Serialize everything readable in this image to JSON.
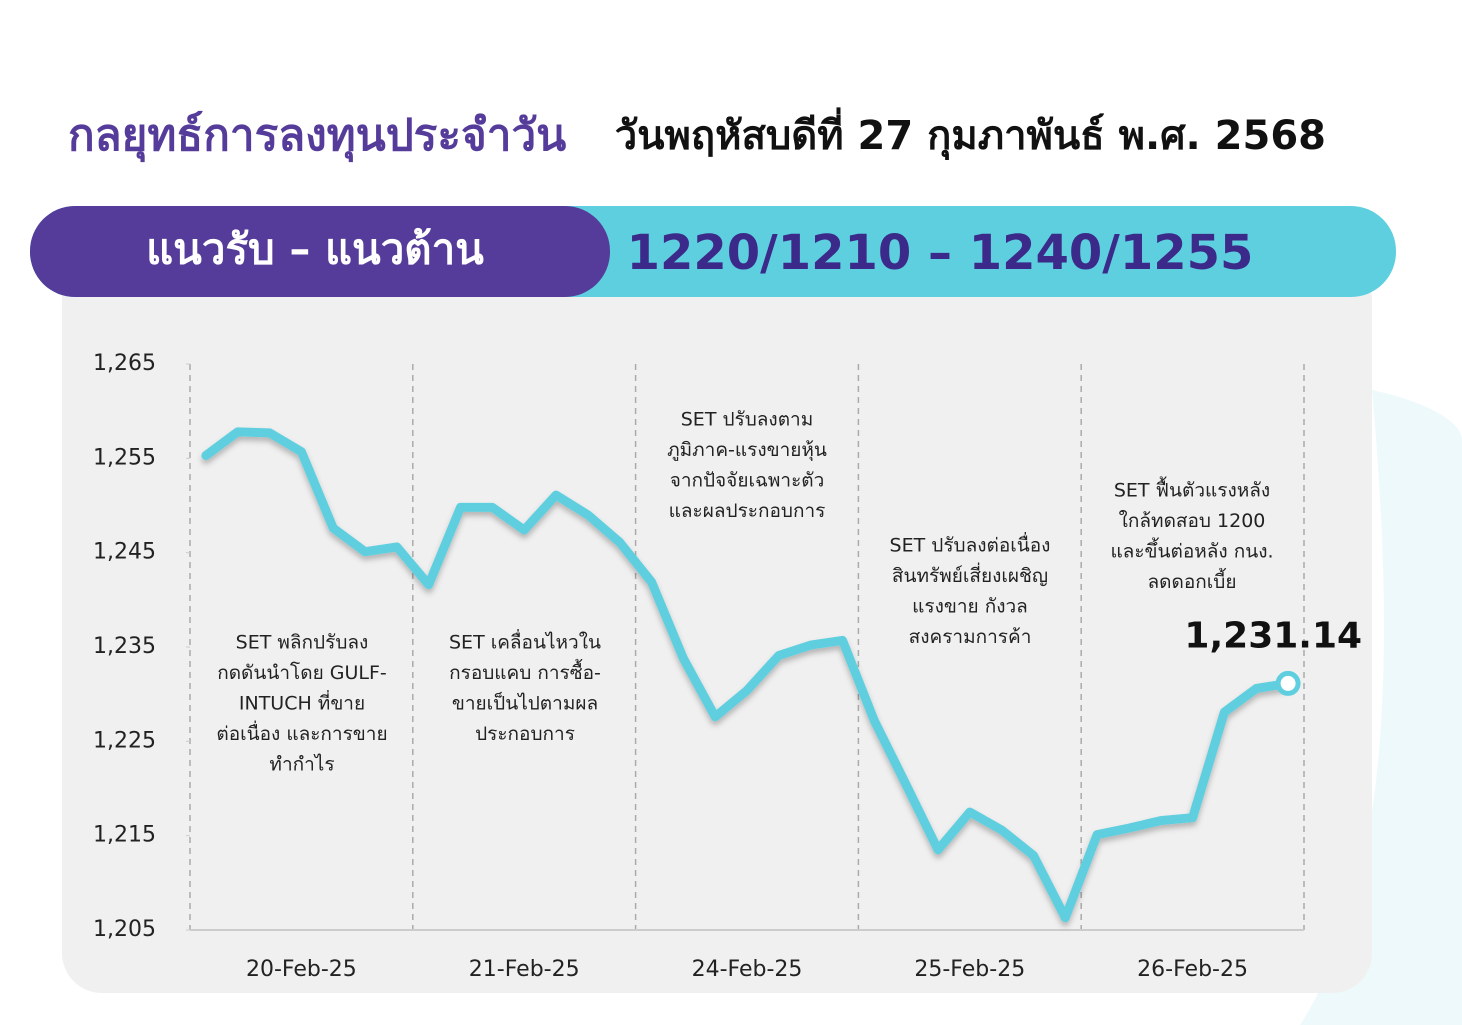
{
  "header": {
    "title": "กลยุทธ์การลงทุนประจำวัน",
    "date": "วันพฤหัสบดีที่ 27 กุมภาพันธ์ พ.ศ. 2568",
    "band_label": "แนวรับ – แนวต้าน",
    "band_value": "1220/1210 – 1240/1255"
  },
  "chart_data": {
    "type": "line",
    "categories": [
      null,
      null,
      null,
      "20-Feb-25",
      null,
      null,
      null,
      null,
      null,
      null,
      "21-Feb-25",
      null,
      null,
      null,
      null,
      null,
      null,
      "24-Feb-25",
      null,
      null,
      null,
      null,
      null,
      null,
      "25-Feb-25",
      null,
      null,
      null,
      null,
      null,
      null,
      "26-Feb-25",
      null,
      null,
      null
    ],
    "series": [
      {
        "color": "#5fcfdf",
        "values": [
          1255.3,
          1257.8,
          1257.7,
          1255.7,
          1247.6,
          1245.1,
          1245.6,
          1241.6,
          1249.8,
          1249.8,
          1247.4,
          1251.1,
          1249.0,
          1246.1,
          1241.9,
          1233.8,
          1227.6,
          1230.4,
          1234.1,
          1235.2,
          1235.7,
          1227.2,
          1220.4,
          1213.5,
          1217.5,
          1215.6,
          1212.9,
          1206.3,
          1215.1,
          1215.8,
          1216.6,
          1216.9,
          1228.1,
          1230.6,
          1231.14
        ],
        "value_labels": [
          null,
          null,
          null,
          null,
          null,
          null,
          null,
          null,
          null,
          null,
          null,
          null,
          null,
          null,
          null,
          null,
          null,
          null,
          null,
          null,
          null,
          null,
          null,
          null,
          null,
          null,
          null,
          null,
          null,
          null,
          null,
          null,
          null,
          null,
          "1,231.14"
        ]
      }
    ],
    "ylim": [
      1205,
      1265
    ],
    "yticks": [
      {
        "value": 1205,
        "label": "1,205"
      },
      {
        "value": 1215,
        "label": "1,215"
      },
      {
        "value": 1225,
        "label": "1,225"
      },
      {
        "value": 1235,
        "label": "1,235"
      },
      {
        "value": 1245,
        "label": "1,245"
      },
      {
        "value": 1255,
        "label": "1,255"
      },
      {
        "value": 1265,
        "label": "1,265"
      }
    ],
    "annotations": [
      [
        "SET พลิกปรับลง",
        "กดดันนำโดย GULF-",
        "INTUCH ที่ขาย",
        "ต่อเนื่อง และการขาย",
        "ทำกำไร"
      ],
      [
        "SET เคลื่อนไหวใน",
        "กรอบแคบ การซื้อ-",
        "ขายเป็นไปตามผล",
        "ประกอบการ"
      ],
      [
        "SET ปรับลงตาม",
        "ภูมิภาค-แรงขายหุ้น",
        "จากปัจจัยเฉพาะตัว",
        "และผลประกอบการ"
      ],
      [
        "SET ปรับลงต่อเนื่อง",
        "สินทรัพย์เสี่ยงเผชิญ",
        "แรงขาย กังวล",
        "สงครามการค้า"
      ],
      [
        "SET ฟื้นตัวแรงหลัง",
        "ใกล้ทดสอบ 1200",
        "และขึ้นต่อหลัง กนง.",
        "ลดดอกเบี้ย"
      ]
    ]
  }
}
